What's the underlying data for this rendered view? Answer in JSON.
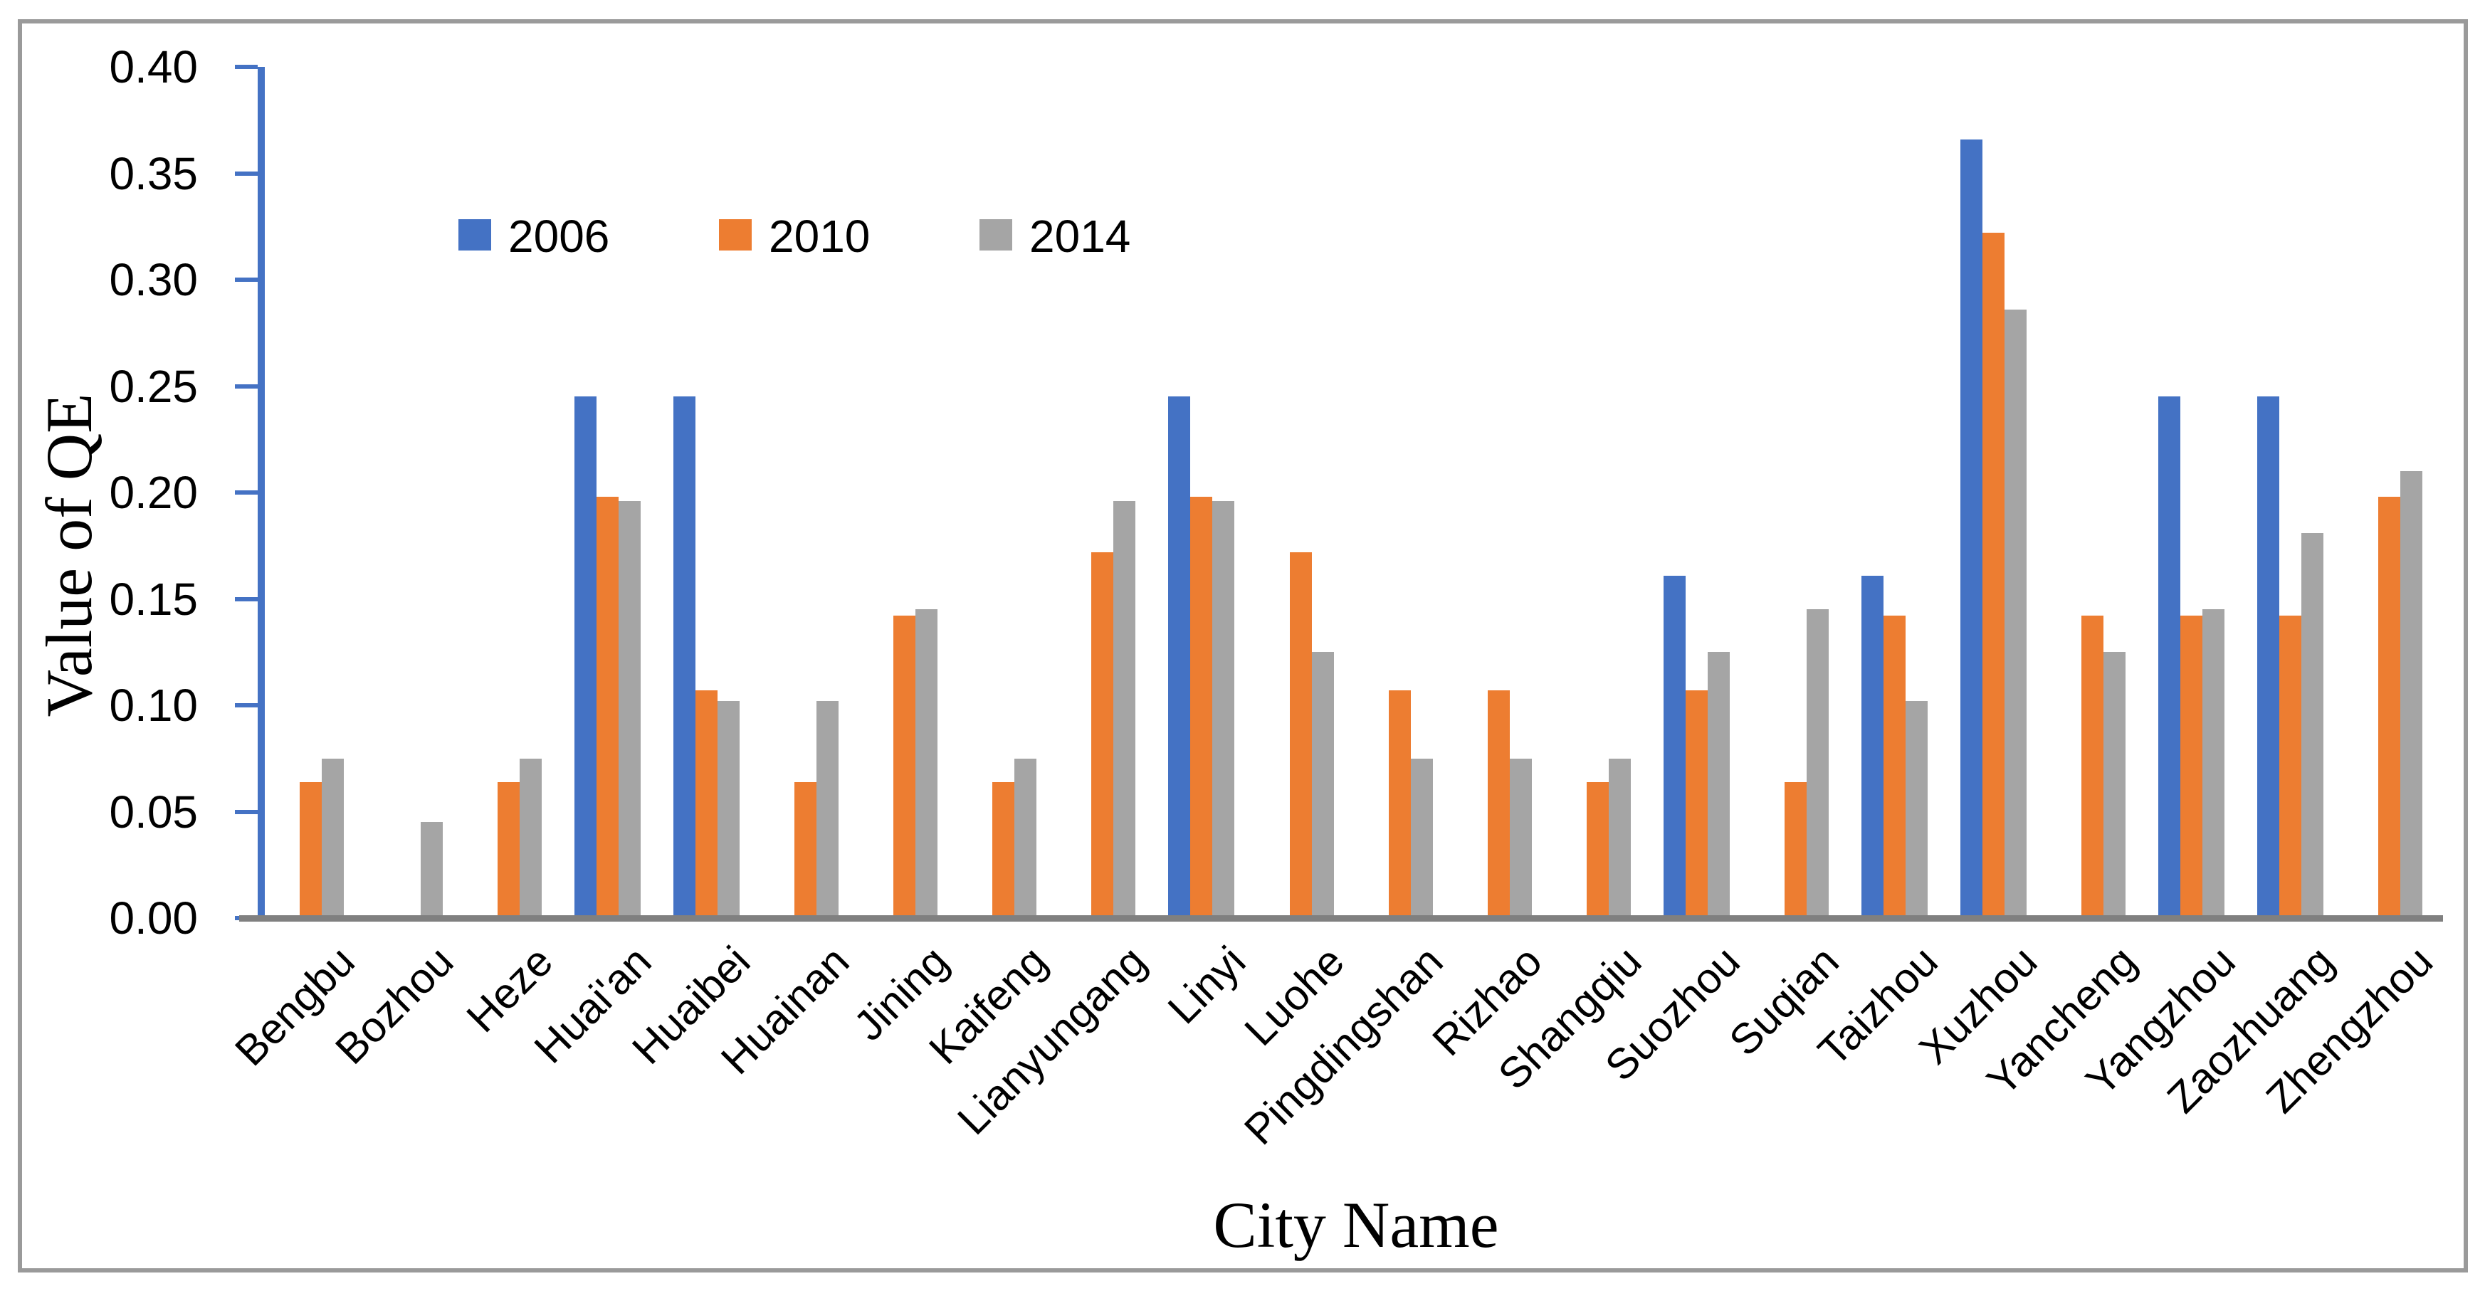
{
  "figure": {
    "background": "#ffffff",
    "border_color": "#9a9a9a"
  },
  "chart_data": {
    "type": "bar",
    "title": "",
    "xlabel": "City Name",
    "ylabel": "Value of QE",
    "ylim": [
      0,
      0.4
    ],
    "y_ticks": [
      0,
      0.05,
      0.1,
      0.15,
      0.2,
      0.25,
      0.3,
      0.35,
      0.4
    ],
    "grid": false,
    "legend_position": "top-left-inside",
    "axis_color": "#4472C4",
    "baseline_color": "#808080",
    "categories": [
      "Bengbu",
      "Bozhou",
      "Heze",
      "Huai'an",
      "Huaibei",
      "Huainan",
      "Jining",
      "Kaifeng",
      "Lianyungang",
      "Linyi",
      "Luohe",
      "Pingdingshan",
      "Rizhao",
      "Shangqiu",
      "Suozhou",
      "Suqian",
      "Taizhou",
      "Xuzhou",
      "Yancheng",
      "Yangzhou",
      "Zaozhuang",
      "Zhengzhou"
    ],
    "series": [
      {
        "name": "2006",
        "color": "#4472C4",
        "values": [
          null,
          null,
          null,
          0.245,
          0.245,
          null,
          null,
          null,
          null,
          0.245,
          null,
          null,
          null,
          null,
          0.161,
          null,
          0.161,
          0.366,
          null,
          0.245,
          0.245,
          null
        ]
      },
      {
        "name": "2010",
        "color": "#ED7D31",
        "values": [
          0.064,
          null,
          0.064,
          0.198,
          0.107,
          0.064,
          0.142,
          0.064,
          0.172,
          0.198,
          0.172,
          0.107,
          0.107,
          0.064,
          0.107,
          0.064,
          0.142,
          0.322,
          0.142,
          0.142,
          0.142,
          0.198
        ]
      },
      {
        "name": "2014",
        "color": "#A5A5A5",
        "values": [
          0.075,
          0.045,
          0.075,
          0.196,
          0.102,
          0.102,
          0.145,
          0.075,
          0.196,
          0.196,
          0.125,
          0.075,
          0.075,
          0.075,
          0.125,
          0.145,
          0.102,
          0.286,
          0.125,
          0.145,
          0.181,
          0.21
        ]
      }
    ]
  }
}
